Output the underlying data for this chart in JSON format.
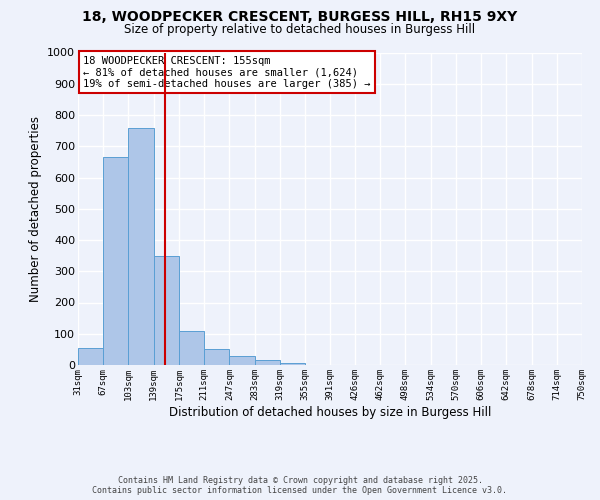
{
  "title_line1": "18, WOODPECKER CRESCENT, BURGESS HILL, RH15 9XY",
  "title_line2": "Size of property relative to detached houses in Burgess Hill",
  "bar_edges": [
    31,
    67,
    103,
    139,
    175,
    211,
    247,
    283,
    319,
    355,
    391,
    426,
    462,
    498,
    534,
    570,
    606,
    642,
    678,
    714,
    750
  ],
  "bar_heights": [
    55,
    665,
    757,
    348,
    110,
    50,
    28,
    15,
    7,
    0,
    0,
    0,
    0,
    0,
    0,
    0,
    0,
    0,
    0,
    0
  ],
  "bar_color": "#aec6e8",
  "bar_edge_color": "#5a9fd4",
  "property_line_x": 155,
  "property_line_color": "#cc0000",
  "xlabel": "Distribution of detached houses by size in Burgess Hill",
  "ylabel": "Number of detached properties",
  "ylim": [
    0,
    1000
  ],
  "yticks": [
    0,
    100,
    200,
    300,
    400,
    500,
    600,
    700,
    800,
    900,
    1000
  ],
  "annotation_title": "18 WOODPECKER CRESCENT: 155sqm",
  "annotation_line1": "← 81% of detached houses are smaller (1,624)",
  "annotation_line2": "19% of semi-detached houses are larger (385) →",
  "annotation_box_color": "#ffffff",
  "annotation_box_edge": "#cc0000",
  "footer_line1": "Contains HM Land Registry data © Crown copyright and database right 2025.",
  "footer_line2": "Contains public sector information licensed under the Open Government Licence v3.0.",
  "background_color": "#eef2fb",
  "grid_color": "#ffffff"
}
